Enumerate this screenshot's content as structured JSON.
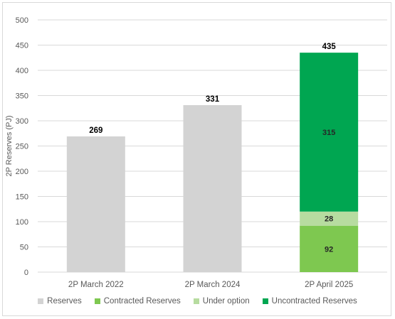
{
  "chart_data": {
    "type": "bar",
    "stacked": true,
    "title": "",
    "xlabel": "",
    "ylabel": "2P Reserves (PJ)",
    "ylim": [
      0,
      500
    ],
    "yticks": [
      "0",
      "50",
      "100",
      "150",
      "200",
      "250",
      "300",
      "350",
      "400",
      "450",
      "500"
    ],
    "grid": true,
    "legend_position": "bottom",
    "categories": [
      "2P March 2022",
      "2P March 2024",
      "2P April 2025"
    ],
    "series": [
      {
        "name": "Reserves",
        "color": "#d3d3d3",
        "values": [
          269,
          331,
          0
        ],
        "labels": [
          "",
          "",
          ""
        ]
      },
      {
        "name": "Contracted Reserves",
        "color": "#7ec850",
        "values": [
          0,
          0,
          92
        ],
        "labels": [
          "",
          "",
          "92"
        ]
      },
      {
        "name": "Under option",
        "color": "#b7dca0",
        "values": [
          0,
          0,
          28
        ],
        "labels": [
          "",
          "",
          "28"
        ]
      },
      {
        "name": "Uncontracted Reserves",
        "color": "#00a651",
        "values": [
          0,
          0,
          315
        ],
        "labels": [
          "",
          "",
          "315"
        ]
      }
    ],
    "totals": [
      "269",
      "331",
      "435"
    ]
  }
}
